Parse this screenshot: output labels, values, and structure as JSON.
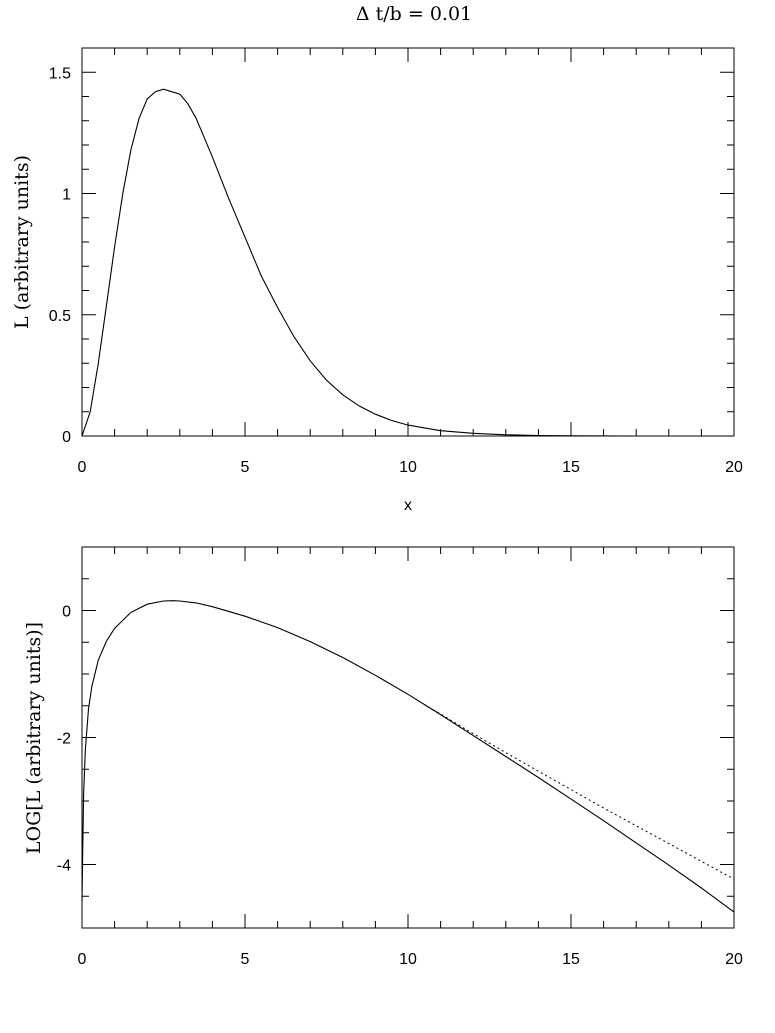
{
  "title": "Δ  t/b = 0.01",
  "chart_data": [
    {
      "type": "line",
      "xlabel": "x",
      "ylabel": "L (arbitrary units)",
      "xlim": [
        0,
        20
      ],
      "ylim": [
        0,
        1.6
      ],
      "xticks": [
        "0",
        "5",
        "10",
        "15",
        "20"
      ],
      "yticks": [
        "0",
        "0.5",
        "1",
        "1.5"
      ],
      "ytick_values": [
        0,
        0.5,
        1,
        1.5
      ],
      "series": [
        {
          "style": "solid",
          "x": [
            0,
            0.25,
            0.5,
            0.75,
            1,
            1.25,
            1.5,
            1.75,
            2,
            2.25,
            2.5,
            2.75,
            3,
            3.25,
            3.5,
            3.75,
            4,
            4.5,
            5,
            5.5,
            6,
            6.5,
            7,
            7.5,
            8,
            8.5,
            9,
            9.5,
            10,
            11,
            12,
            13,
            14,
            15,
            16,
            17,
            18,
            19,
            20
          ],
          "values": [
            0,
            0.1,
            0.3,
            0.54,
            0.78,
            1.0,
            1.18,
            1.31,
            1.39,
            1.42,
            1.43,
            1.42,
            1.41,
            1.37,
            1.31,
            1.23,
            1.15,
            0.98,
            0.82,
            0.66,
            0.53,
            0.41,
            0.31,
            0.23,
            0.17,
            0.124,
            0.09,
            0.064,
            0.045,
            0.022,
            0.011,
            0.005,
            0.002,
            0.001,
            0.0005,
            0.0002,
            0.0001,
            5e-05,
            2e-05
          ]
        }
      ]
    },
    {
      "type": "line",
      "ylabel": "LOG[L (arbitrary units)]",
      "xlim": [
        0,
        20
      ],
      "ylim": [
        -5,
        1
      ],
      "xticks": [
        "0",
        "5",
        "10",
        "15",
        "20"
      ],
      "yticks": [
        "0",
        "-2",
        "-4"
      ],
      "ytick_values": [
        0,
        -2,
        -4
      ],
      "series": [
        {
          "style": "solid",
          "x": [
            0,
            0.02,
            0.05,
            0.1,
            0.2,
            0.3,
            0.5,
            0.75,
            1,
            1.5,
            2,
            2.5,
            2.8,
            3,
            3.5,
            4,
            5,
            6,
            7,
            8,
            9,
            10,
            11,
            12,
            13,
            14,
            15,
            16,
            17,
            18,
            19,
            20
          ],
          "values": [
            -4.6,
            -3.8,
            -2.9,
            -2.2,
            -1.55,
            -1.2,
            -0.78,
            -0.48,
            -0.28,
            -0.03,
            0.1,
            0.15,
            0.155,
            0.15,
            0.12,
            0.06,
            -0.09,
            -0.27,
            -0.49,
            -0.74,
            -1.02,
            -1.32,
            -1.64,
            -1.97,
            -2.3,
            -2.63,
            -2.97,
            -3.31,
            -3.66,
            -4.01,
            -4.37,
            -4.75
          ]
        },
        {
          "style": "dotted",
          "x": [
            10.5,
            11,
            12,
            13,
            14,
            15,
            16,
            17,
            18,
            19,
            20
          ],
          "values": [
            -1.48,
            -1.63,
            -1.94,
            -2.24,
            -2.53,
            -2.82,
            -3.11,
            -3.39,
            -3.67,
            -3.95,
            -4.23
          ]
        }
      ]
    }
  ]
}
